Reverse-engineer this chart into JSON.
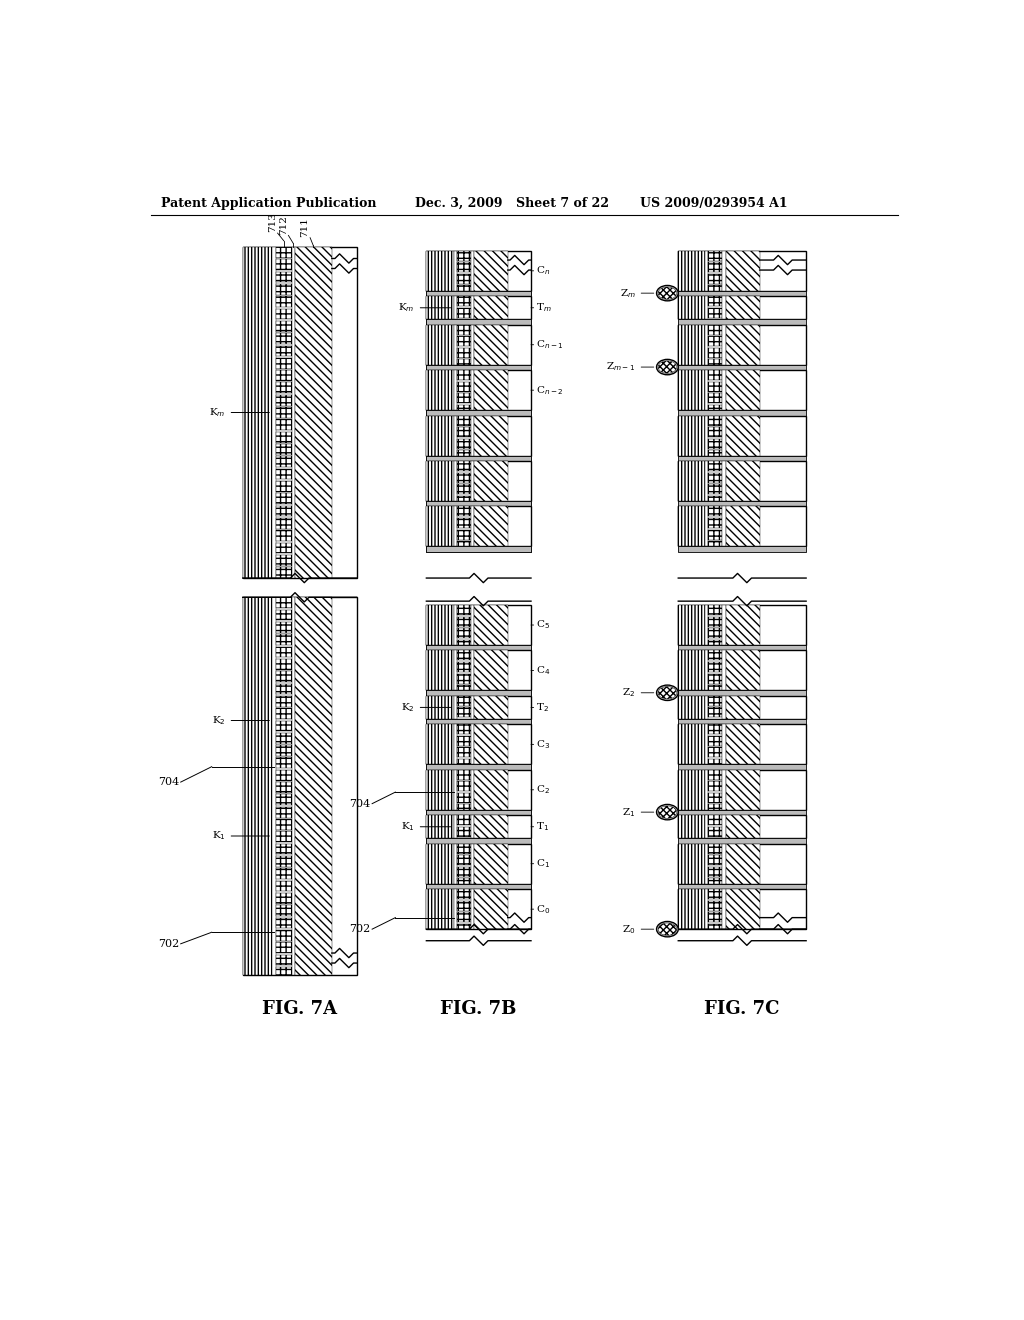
{
  "header_left": "Patent Application Publication",
  "header_mid1": "Dec. 3, 2009",
  "header_mid2": "Sheet 7 of 22",
  "header_right": "US 2009/0293954 A1",
  "background": "#ffffff",
  "fig7a_label": "FIG. 7A",
  "fig7b_label": "FIG. 7B",
  "fig7c_label": "FIG. 7C"
}
